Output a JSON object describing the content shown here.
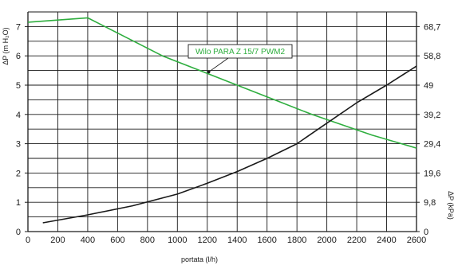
{
  "chart_data": {
    "type": "line",
    "xlabel": "portata (l/h)",
    "ylabel_left": "ΔP (m H₂O)",
    "ylabel_right": "ΔP (kPa)",
    "xlim": [
      0,
      2600
    ],
    "ylim": [
      0,
      7.5
    ],
    "grid": true,
    "x_ticks": [
      "0",
      "200",
      "400",
      "600",
      "800",
      "1000",
      "1200",
      "1400",
      "1600",
      "1800",
      "2000",
      "2200",
      "2400",
      "2600"
    ],
    "y_ticks_left": [
      "0",
      "1",
      "2",
      "3",
      "4",
      "5",
      "6",
      "7"
    ],
    "y_ticks_right": [
      {
        "value": 0,
        "label": "0"
      },
      {
        "value": 1,
        "label": "9,8"
      },
      {
        "value": 2,
        "label": "19,6"
      },
      {
        "value": 3,
        "label": "29,4"
      },
      {
        "value": 4,
        "label": "39,2"
      },
      {
        "value": 5,
        "label": "49"
      },
      {
        "value": 6,
        "label": "58,8"
      },
      {
        "value": 7,
        "label": "68,7"
      }
    ],
    "colors": {
      "pump": "#2fae3f",
      "system": "#1a1a1a",
      "grid": "#1a1a1a"
    },
    "series": [
      {
        "name": "Wilo PARA Z 15/7 PWM2",
        "color": "#2fae3f",
        "x": [
          0,
          400,
          900,
          1400,
          1900,
          2300,
          2600
        ],
        "y": [
          7.15,
          7.3,
          6.0,
          5.0,
          4.0,
          3.3,
          2.85
        ]
      },
      {
        "name": "",
        "color": "#1a1a1a",
        "x": [
          100,
          400,
          700,
          1000,
          1200,
          1400,
          1600,
          1800,
          2000,
          2200,
          2400,
          2600
        ],
        "y": [
          0.3,
          0.57,
          0.88,
          1.28,
          1.65,
          2.05,
          2.5,
          3.0,
          3.7,
          4.4,
          5.0,
          5.65
        ]
      }
    ],
    "annotation": {
      "text": "Wilo PARA Z 15/7 PWM2",
      "target_x": 1210,
      "target_y": 5.45
    }
  }
}
